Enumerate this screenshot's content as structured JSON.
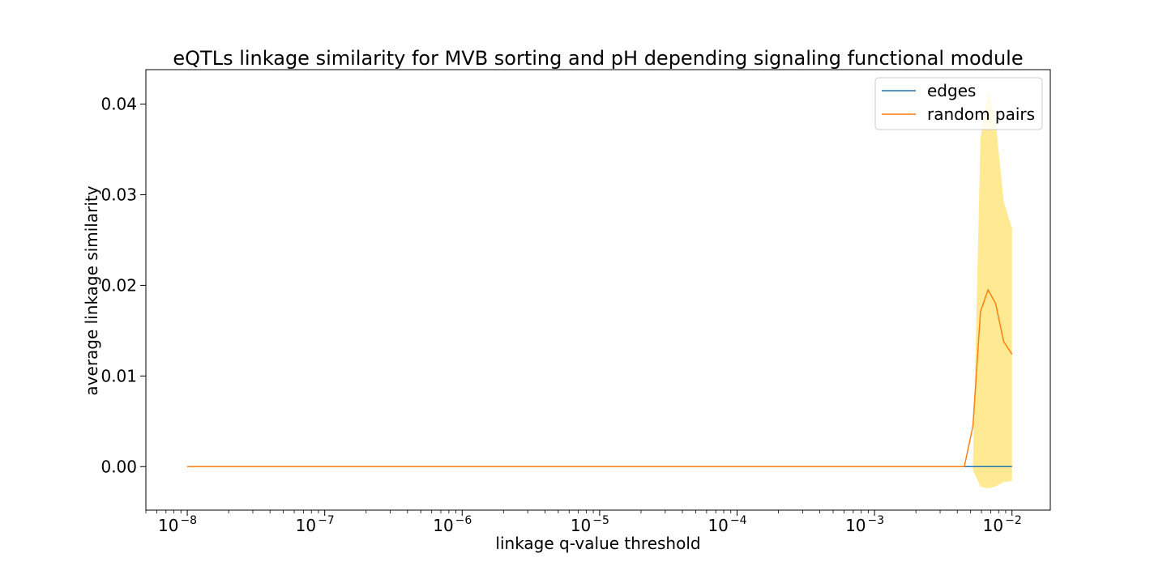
{
  "chart_data": {
    "type": "line",
    "title": "eQTLs linkage similarity for MVB sorting and pH depending signaling functional module",
    "xlabel": "linkage q-value threshold",
    "ylabel": "average linkage similarity",
    "xscale": "log",
    "xlim": [
      5e-09,
      0.019
    ],
    "ylim": [
      -0.0048,
      0.0438
    ],
    "x_ticks": [
      {
        "base": "10",
        "exp": "−8",
        "value": 1e-08
      },
      {
        "base": "10",
        "exp": "−7",
        "value": 1e-07
      },
      {
        "base": "10",
        "exp": "−6",
        "value": 1e-06
      },
      {
        "base": "10",
        "exp": "−5",
        "value": 1e-05
      },
      {
        "base": "10",
        "exp": "−4",
        "value": 0.0001
      },
      {
        "base": "10",
        "exp": "−3",
        "value": 0.001
      },
      {
        "base": "10",
        "exp": "−2",
        "value": 0.01
      }
    ],
    "y_ticks": [
      {
        "label": "0.00",
        "value": 0.0
      },
      {
        "label": "0.01",
        "value": 0.01
      },
      {
        "label": "0.02",
        "value": 0.02
      },
      {
        "label": "0.03",
        "value": 0.03
      },
      {
        "label": "0.04",
        "value": 0.04
      }
    ],
    "series": [
      {
        "name": "edges",
        "color": "#1f77b4",
        "x": [
          1e-08,
          0.0045,
          0.01
        ],
        "y": [
          0.0,
          0.0,
          0.0
        ]
      },
      {
        "name": "random pairs",
        "color": "#ff7f0e",
        "x": [
          1e-08,
          0.0045,
          0.0052,
          0.0059,
          0.0067,
          0.0076,
          0.0087,
          0.01
        ],
        "y": [
          0.0,
          0.0,
          0.0045,
          0.0171,
          0.0195,
          0.018,
          0.0138,
          0.0124
        ]
      }
    ],
    "band": {
      "color": "#ffe680",
      "x": [
        0.0052,
        0.0059,
        0.0067,
        0.0076,
        0.0087,
        0.01
      ],
      "upper": [
        0.0004,
        0.0362,
        0.0414,
        0.0382,
        0.0292,
        0.0263
      ],
      "lower": [
        -0.0004,
        -0.0022,
        -0.0024,
        -0.0022,
        -0.0017,
        -0.0016
      ]
    },
    "legend_position": "top-right",
    "grid": false
  }
}
